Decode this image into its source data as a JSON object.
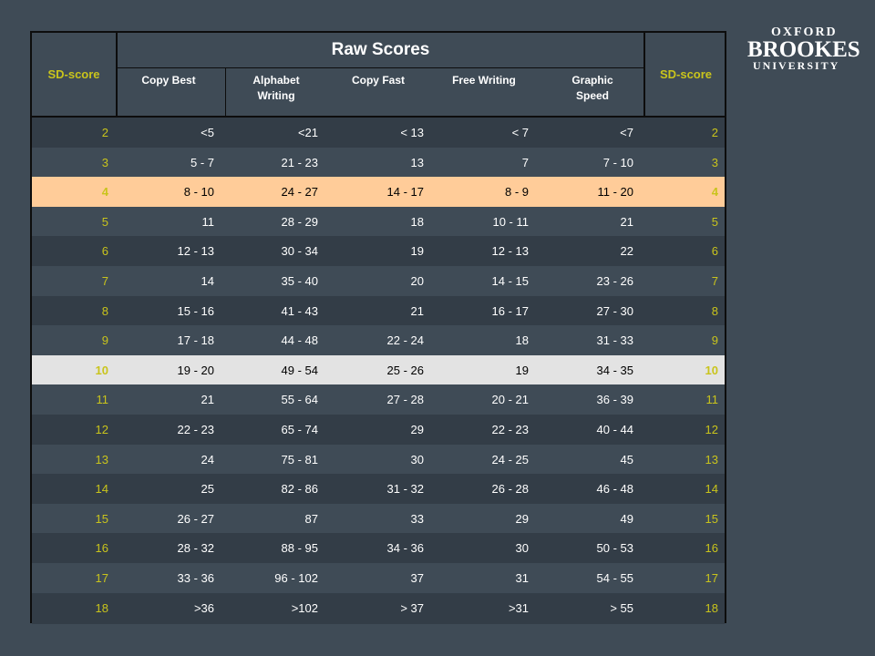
{
  "logo": {
    "line1": "OXFORD",
    "line2": "BROOKES",
    "line3": "UNIVERSITY"
  },
  "header": {
    "sd_left": "SD-score",
    "sd_right": "SD-score",
    "raw_title": "Raw Scores",
    "columns": [
      "Copy   Best",
      "Alphabet\nWriting",
      "Copy   Fast",
      "Free Writing",
      "Graphic\nSpeed"
    ]
  },
  "rows": [
    {
      "sd": "2",
      "cells": [
        "<5",
        "<21",
        "< 13",
        "< 7",
        "<7"
      ],
      "highlight": ""
    },
    {
      "sd": "3",
      "cells": [
        "5 - 7",
        "21 - 23",
        "13",
        "7",
        "7 - 10"
      ],
      "highlight": ""
    },
    {
      "sd": "4",
      "cells": [
        "8 - 10",
        "24 - 27",
        "14 - 17",
        "8 - 9",
        "11 - 20"
      ],
      "highlight": "orange"
    },
    {
      "sd": "5",
      "cells": [
        "11",
        "28 - 29",
        "18",
        "10 - 11",
        "21"
      ],
      "highlight": ""
    },
    {
      "sd": "6",
      "cells": [
        "12 - 13",
        "30 - 34",
        "19",
        "12 - 13",
        "22"
      ],
      "highlight": ""
    },
    {
      "sd": "7",
      "cells": [
        "14",
        "35 - 40",
        "20",
        "14 - 15",
        "23 - 26"
      ],
      "highlight": ""
    },
    {
      "sd": "8",
      "cells": [
        "15 - 16",
        "41 - 43",
        "21",
        "16 - 17",
        "27 - 30"
      ],
      "highlight": ""
    },
    {
      "sd": "9",
      "cells": [
        "17 - 18",
        "44 - 48",
        "22 - 24",
        "18",
        "31 - 33"
      ],
      "highlight": ""
    },
    {
      "sd": "10",
      "cells": [
        "19 - 20",
        "49 - 54",
        "25 - 26",
        "19",
        "34 - 35"
      ],
      "highlight": "grey"
    },
    {
      "sd": "11",
      "cells": [
        "21",
        "55 - 64",
        "27 - 28",
        "20 - 21",
        "36 - 39"
      ],
      "highlight": ""
    },
    {
      "sd": "12",
      "cells": [
        "22 - 23",
        "65 - 74",
        "29",
        "22 - 23",
        "40 - 44"
      ],
      "highlight": ""
    },
    {
      "sd": "13",
      "cells": [
        "24",
        "75 - 81",
        "30",
        "24 - 25",
        "45"
      ],
      "highlight": ""
    },
    {
      "sd": "14",
      "cells": [
        "25",
        "82 - 86",
        "31 - 32",
        "26 - 28",
        "46 - 48"
      ],
      "highlight": ""
    },
    {
      "sd": "15",
      "cells": [
        "26 - 27",
        "87",
        "33",
        "29",
        "49"
      ],
      "highlight": ""
    },
    {
      "sd": "16",
      "cells": [
        "28 - 32",
        "88 - 95",
        "34 - 36",
        "30",
        "50 - 53"
      ],
      "highlight": ""
    },
    {
      "sd": "17",
      "cells": [
        "33 - 36",
        "96 - 102",
        "37",
        "31",
        "54 - 55"
      ],
      "highlight": ""
    },
    {
      "sd": "18",
      "cells": [
        ">36",
        ">102",
        "> 37",
        ">31",
        "> 55"
      ],
      "highlight": ""
    }
  ],
  "colors": {
    "background": "#3f4b56",
    "sd_text": "#c9c41c",
    "highlight_orange": "#ffcc99",
    "highlight_grey": "#e3e3e3"
  }
}
